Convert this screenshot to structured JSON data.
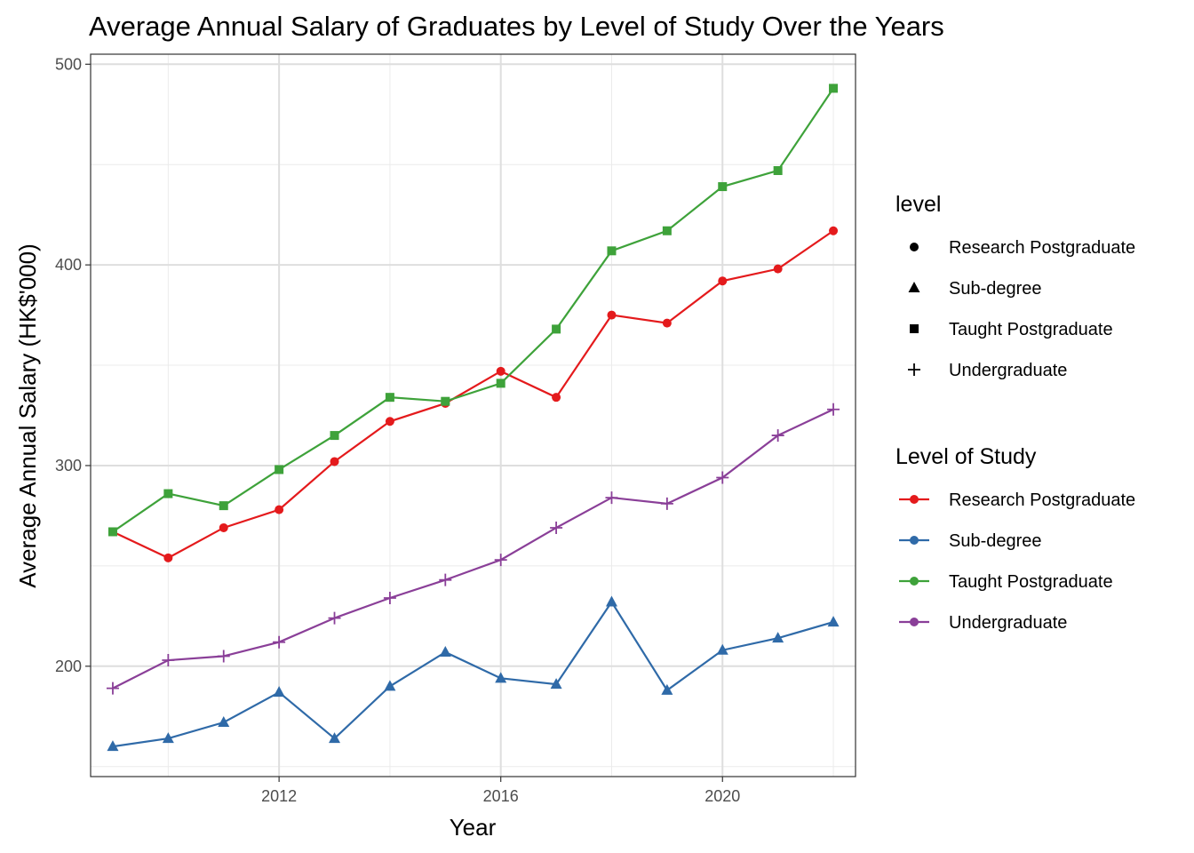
{
  "chart_data": {
    "type": "line",
    "title": "Average Annual Salary of Graduates by Level of Study Over the Years",
    "xlabel": "Year",
    "ylabel": "Average Annual Salary (HK$'000)",
    "xlim": [
      2008.6,
      2022.4
    ],
    "ylim": [
      145,
      505
    ],
    "x_ticks": [
      2012,
      2016,
      2020
    ],
    "y_ticks": [
      200,
      300,
      400,
      500
    ],
    "grid": true,
    "legend_position": "right",
    "x": [
      2009,
      2010,
      2011,
      2012,
      2013,
      2014,
      2015,
      2016,
      2017,
      2018,
      2019,
      2020,
      2021,
      2022
    ],
    "series": [
      {
        "name": "Research Postgraduate",
        "color": "#e41a1c",
        "shape": "circle",
        "values": [
          267,
          254,
          269,
          278,
          302,
          322,
          331,
          347,
          334,
          375,
          371,
          392,
          398,
          417
        ]
      },
      {
        "name": "Sub-degree",
        "color": "#2f6aa8",
        "shape": "triangle",
        "values": [
          160,
          164,
          172,
          187,
          164,
          190,
          207,
          194,
          191,
          232,
          188,
          208,
          214,
          222
        ]
      },
      {
        "name": "Taught Postgraduate",
        "color": "#3ea23a",
        "shape": "square",
        "values": [
          267,
          286,
          280,
          298,
          315,
          334,
          332,
          341,
          368,
          407,
          417,
          439,
          447,
          488
        ]
      },
      {
        "name": "Undergraduate",
        "color": "#8a3f98",
        "shape": "plus",
        "values": [
          189,
          203,
          205,
          212,
          224,
          234,
          243,
          253,
          269,
          284,
          281,
          294,
          315,
          328
        ]
      }
    ],
    "legends": [
      {
        "title": "level",
        "kind": "shape",
        "entries": [
          {
            "label": "Research Postgraduate",
            "shape": "circle"
          },
          {
            "label": "Sub-degree",
            "shape": "triangle"
          },
          {
            "label": "Taught Postgraduate",
            "shape": "square"
          },
          {
            "label": "Undergraduate",
            "shape": "plus"
          }
        ]
      },
      {
        "title": "Level of Study",
        "kind": "color",
        "entries": [
          {
            "label": "Research Postgraduate",
            "color": "#e41a1c"
          },
          {
            "label": "Sub-degree",
            "color": "#2f6aa8"
          },
          {
            "label": "Taught Postgraduate",
            "color": "#3ea23a"
          },
          {
            "label": "Undergraduate",
            "color": "#8a3f98"
          }
        ]
      }
    ]
  }
}
